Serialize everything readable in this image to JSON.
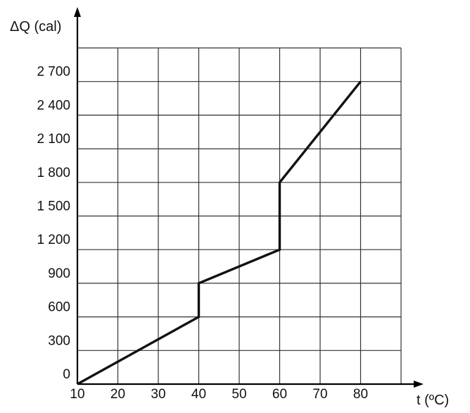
{
  "chart_data": {
    "type": "line",
    "xlabel": "t (ºC)",
    "ylabel": "ΔQ (cal)",
    "x_ticks": [
      "10",
      "20",
      "30",
      "40",
      "50",
      "60",
      "70",
      "80"
    ],
    "y_ticks": [
      "0",
      "300",
      "600",
      "900",
      "1 200",
      "1 500",
      "1 800",
      "2 100",
      "2 400",
      "2 700"
    ],
    "xlim": [
      10,
      90
    ],
    "ylim": [
      0,
      3000
    ],
    "grid": true,
    "series": [
      {
        "x": [
          10,
          40,
          40,
          60,
          60,
          80
        ],
        "y": [
          0,
          600,
          900,
          1200,
          1800,
          2700
        ]
      }
    ],
    "colors": {
      "line": "#111111",
      "grid": "#333333",
      "axis": "#000000"
    }
  }
}
